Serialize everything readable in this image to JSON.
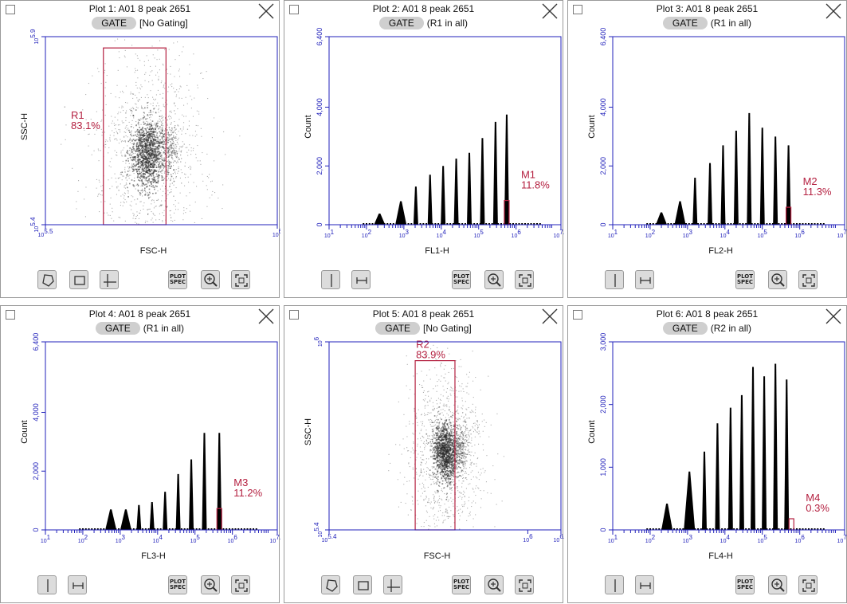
{
  "colors": {
    "axis": "#2222bb",
    "gate": "#b42040",
    "label": "#b42040",
    "hist": "#000000",
    "dots": "#7a7a7a"
  },
  "ui": {
    "gate_button": "GATE",
    "plot_spec_line1": "PLOT",
    "plot_spec_line2": "SPEC",
    "icons": [
      "checkbox-icon",
      "close-icon",
      "polygon-gate-icon",
      "rectangle-gate-icon",
      "quadrant-gate-icon",
      "vertical-marker-icon",
      "range-marker-icon",
      "plot-spec-icon",
      "zoom-in-icon",
      "fit-to-view-icon"
    ]
  },
  "plots": [
    {
      "title": "Plot 1: A01 8 peak 2651",
      "gating": "[No Gating]",
      "type": "density",
      "xlabel": "FSC-H",
      "ylabel": "SSC-H",
      "x_ticks": [
        {
          "base": "10",
          "exp": "5.5"
        },
        {
          "base": "10",
          "exp": "6"
        }
      ],
      "y_ticks": [
        {
          "base": "10",
          "exp": "5.4"
        },
        {
          "base": "10",
          "exp": "5.9"
        }
      ],
      "region": {
        "name": "R1",
        "pct": "83.1%"
      }
    },
    {
      "title": "Plot 2: A01 8 peak 2651",
      "gating": "(R1 in all)",
      "type": "histogram",
      "xlabel": "FL1-H",
      "ylabel": "Count",
      "y_ticks": [
        "0",
        "2,000",
        "4,000",
        "6,400"
      ],
      "x_ticks": [
        {
          "base": "10",
          "exp": "1"
        },
        {
          "base": "10",
          "exp": "2"
        },
        {
          "base": "10",
          "exp": "3"
        },
        {
          "base": "10",
          "exp": "4"
        },
        {
          "base": "10",
          "exp": "5"
        },
        {
          "base": "10",
          "exp": "6"
        },
        {
          "base": "10",
          "exp": "7.2"
        }
      ],
      "marker": {
        "name": "M1",
        "pct": "11.8%"
      }
    },
    {
      "title": "Plot 3: A01 8 peak 2651",
      "gating": "(R1 in all)",
      "type": "histogram",
      "xlabel": "FL2-H",
      "ylabel": "Count",
      "y_ticks": [
        "0",
        "2,000",
        "4,000",
        "6,400"
      ],
      "x_ticks": [
        {
          "base": "10",
          "exp": "1"
        },
        {
          "base": "10",
          "exp": "2"
        },
        {
          "base": "10",
          "exp": "3"
        },
        {
          "base": "10",
          "exp": "4"
        },
        {
          "base": "10",
          "exp": "5"
        },
        {
          "base": "10",
          "exp": "6"
        },
        {
          "base": "10",
          "exp": "7.2"
        }
      ],
      "marker": {
        "name": "M2",
        "pct": "11.3%"
      }
    },
    {
      "title": "Plot 4: A01 8 peak 2651",
      "gating": "(R1 in all)",
      "type": "histogram",
      "xlabel": "FL3-H",
      "ylabel": "Count",
      "y_ticks": [
        "0",
        "2,000",
        "4,000",
        "6,400"
      ],
      "x_ticks": [
        {
          "base": "10",
          "exp": "1"
        },
        {
          "base": "10",
          "exp": "2"
        },
        {
          "base": "10",
          "exp": "3"
        },
        {
          "base": "10",
          "exp": "4"
        },
        {
          "base": "10",
          "exp": "5"
        },
        {
          "base": "10",
          "exp": "6"
        },
        {
          "base": "10",
          "exp": "7.2"
        }
      ],
      "marker": {
        "name": "M3",
        "pct": "11.2%"
      }
    },
    {
      "title": "Plot 5: A01 8 peak 2651",
      "gating": "[No Gating]",
      "type": "density",
      "xlabel": "FSC-H",
      "ylabel": "SSC-H",
      "x_ticks": [
        {
          "base": "10",
          "exp": "5.4"
        },
        {
          "base": "10",
          "exp": "6"
        },
        {
          "base": "10",
          "exp": "6.1"
        }
      ],
      "y_ticks": [
        {
          "base": "10",
          "exp": "5.4"
        },
        {
          "base": "10",
          "exp": "6"
        }
      ],
      "region": {
        "name": "R2",
        "pct": "83.9%"
      }
    },
    {
      "title": "Plot 6: A01 8 peak 2651",
      "gating": "(R2 in all)",
      "type": "histogram",
      "xlabel": "FL4-H",
      "ylabel": "Count",
      "y_ticks": [
        "0",
        "1,000",
        "2,000",
        "3,000"
      ],
      "x_ticks": [
        {
          "base": "10",
          "exp": "1"
        },
        {
          "base": "10",
          "exp": "2"
        },
        {
          "base": "10",
          "exp": "3"
        },
        {
          "base": "10",
          "exp": "4"
        },
        {
          "base": "10",
          "exp": "5"
        },
        {
          "base": "10",
          "exp": "6"
        },
        {
          "base": "10",
          "exp": "7.2"
        }
      ],
      "marker": {
        "name": "M4",
        "pct": "0.3%"
      }
    }
  ],
  "chart_data": [
    {
      "type": "scatter",
      "title": "Plot 1: A01 8 peak 2651",
      "xlabel": "FSC-H",
      "ylabel": "SSC-H",
      "xscale": "log",
      "yscale": "log",
      "xlim": [
        "10^5.5",
        "10^6"
      ],
      "ylim": [
        "10^5.4",
        "10^5.9"
      ],
      "region": {
        "name": "R1",
        "percent": 83.1,
        "x_range_log": [
          5.625,
          5.76
        ],
        "y_range_log": [
          5.4,
          5.87
        ]
      },
      "population_center_log": [
        5.72,
        5.59
      ]
    },
    {
      "type": "histogram",
      "title": "Plot 2: A01 8 peak 2651",
      "xlabel": "FL1-H",
      "ylabel": "Count",
      "xscale": "log",
      "xlim_log10": [
        1,
        7.2
      ],
      "ylim": [
        0,
        6400
      ],
      "peaks": [
        {
          "x_log": 2.35,
          "count": 380
        },
        {
          "x_log": 2.92,
          "count": 800
        },
        {
          "x_log": 3.32,
          "count": 1300
        },
        {
          "x_log": 3.7,
          "count": 1700
        },
        {
          "x_log": 4.05,
          "count": 2000
        },
        {
          "x_log": 4.4,
          "count": 2250
        },
        {
          "x_log": 4.75,
          "count": 2450
        },
        {
          "x_log": 5.1,
          "count": 2950
        },
        {
          "x_log": 5.45,
          "count": 3500
        },
        {
          "x_log": 5.75,
          "count": 3750
        }
      ],
      "marker": {
        "name": "M1",
        "percent": 11.8
      }
    },
    {
      "type": "histogram",
      "title": "Plot 3: A01 8 peak 2651",
      "xlabel": "FL2-H",
      "ylabel": "Count",
      "xscale": "log",
      "xlim_log10": [
        1,
        7.2
      ],
      "ylim": [
        0,
        6400
      ],
      "peaks": [
        {
          "x_log": 2.3,
          "count": 420
        },
        {
          "x_log": 2.8,
          "count": 800
        },
        {
          "x_log": 3.2,
          "count": 1600
        },
        {
          "x_log": 3.6,
          "count": 2100
        },
        {
          "x_log": 3.95,
          "count": 2700
        },
        {
          "x_log": 4.3,
          "count": 3200
        },
        {
          "x_log": 4.65,
          "count": 3800
        },
        {
          "x_log": 5.0,
          "count": 3300
        },
        {
          "x_log": 5.35,
          "count": 3000
        },
        {
          "x_log": 5.7,
          "count": 2700
        }
      ],
      "marker": {
        "name": "M2",
        "percent": 11.3
      }
    },
    {
      "type": "histogram",
      "title": "Plot 4: A01 8 peak 2651",
      "xlabel": "FL3-H",
      "ylabel": "Count",
      "xscale": "log",
      "xlim_log10": [
        1,
        7.2
      ],
      "ylim": [
        0,
        6400
      ],
      "peaks": [
        {
          "x_log": 2.75,
          "count": 700
        },
        {
          "x_log": 3.15,
          "count": 700
        },
        {
          "x_log": 3.5,
          "count": 850
        },
        {
          "x_log": 3.85,
          "count": 950
        },
        {
          "x_log": 4.2,
          "count": 1300
        },
        {
          "x_log": 4.55,
          "count": 1900
        },
        {
          "x_log": 4.9,
          "count": 2400
        },
        {
          "x_log": 5.25,
          "count": 3300
        },
        {
          "x_log": 5.65,
          "count": 3300
        }
      ],
      "marker": {
        "name": "M3",
        "percent": 11.2
      }
    },
    {
      "type": "scatter",
      "title": "Plot 5: A01 8 peak 2651",
      "xlabel": "FSC-H",
      "ylabel": "SSC-H",
      "xscale": "log",
      "yscale": "log",
      "xlim": [
        "10^5.4",
        "10^6.1"
      ],
      "ylim": [
        "10^5.4",
        "10^6"
      ],
      "region": {
        "name": "R2",
        "percent": 83.9,
        "x_range_log": [
          5.66,
          5.78
        ],
        "y_range_log": [
          5.4,
          5.94
        ]
      },
      "population_center_log": [
        5.75,
        5.65
      ]
    },
    {
      "type": "histogram",
      "title": "Plot 6: A01 8 peak 2651",
      "xlabel": "FL4-H",
      "ylabel": "Count",
      "xscale": "log",
      "xlim_log10": [
        1,
        7.2
      ],
      "ylim": [
        0,
        3000
      ],
      "peaks": [
        {
          "x_log": 2.45,
          "count": 420
        },
        {
          "x_log": 3.05,
          "count": 930
        },
        {
          "x_log": 3.45,
          "count": 1250
        },
        {
          "x_log": 3.8,
          "count": 1700
        },
        {
          "x_log": 4.15,
          "count": 1950
        },
        {
          "x_log": 4.45,
          "count": 2150
        },
        {
          "x_log": 4.75,
          "count": 2600
        },
        {
          "x_log": 5.05,
          "count": 2450
        },
        {
          "x_log": 5.35,
          "count": 2650
        },
        {
          "x_log": 5.65,
          "count": 2400
        }
      ],
      "marker": {
        "name": "M4",
        "percent": 0.3
      }
    }
  ]
}
